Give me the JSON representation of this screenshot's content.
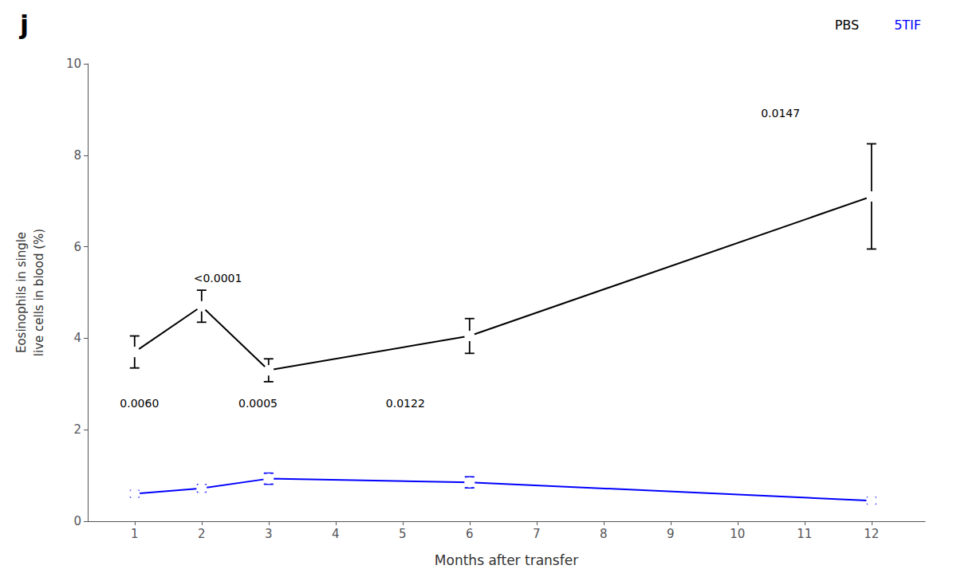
{
  "chart_data": {
    "type": "line",
    "title": "j",
    "xlabel": "Months after transfer",
    "ylabel": "Eosinophils in single\nlive cells in blood (%)",
    "x": [
      1,
      2,
      3,
      6,
      12
    ],
    "series": [
      {
        "name": "PBS",
        "color": "#000000",
        "values": [
          3.7,
          4.7,
          3.3,
          4.05,
          7.1
        ],
        "yerr": [
          0.35,
          0.35,
          0.25,
          0.38,
          1.15
        ]
      },
      {
        "name": "5TIF",
        "color": "#0000ff",
        "values": [
          0.6,
          0.72,
          0.93,
          0.85,
          0.45
        ],
        "yerr": [
          0.07,
          0.08,
          0.12,
          0.12,
          0.07
        ]
      }
    ],
    "xlim": [
      0.3,
      12.8
    ],
    "xticks": [
      1,
      2,
      3,
      4,
      5,
      6,
      7,
      8,
      9,
      10,
      11,
      12
    ],
    "ylim": [
      0,
      10
    ],
    "yticks": [
      0,
      2,
      4,
      6,
      8,
      10
    ],
    "annotations": [
      {
        "text": "<0.0001",
        "x": 1.88,
        "y": 5.2
      },
      {
        "text": "0.0060",
        "x": 0.78,
        "y": 2.45
      },
      {
        "text": "0.0005",
        "x": 2.55,
        "y": 2.45
      },
      {
        "text": "0.0122",
        "x": 4.75,
        "y": 2.45
      },
      {
        "text": "0.0147",
        "x": 10.35,
        "y": 8.8
      }
    ],
    "marker": "circle",
    "legend": "upper right",
    "grid": false
  }
}
